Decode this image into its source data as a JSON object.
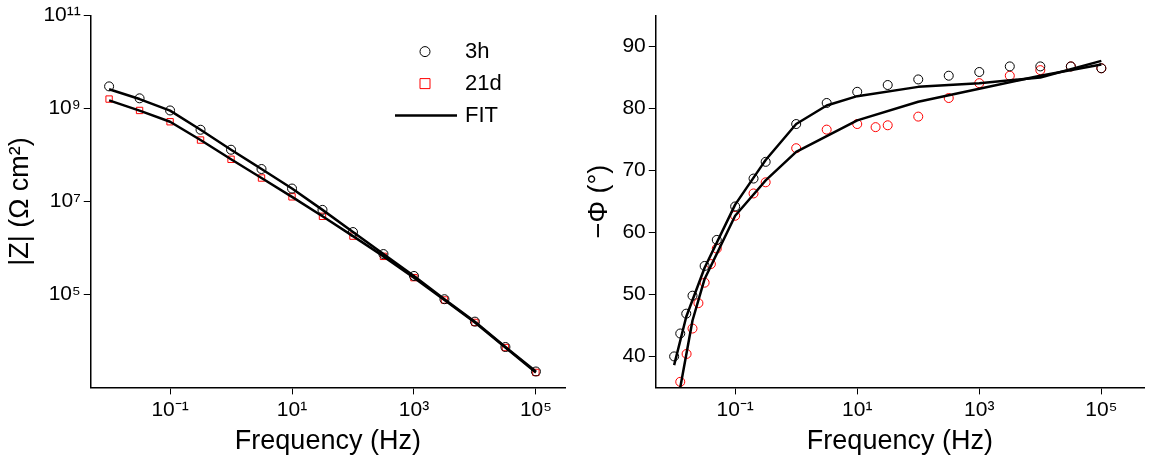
{
  "chart_data": [
    {
      "type": "scatter",
      "xlabel": "Frequency (Hz)",
      "ylabel": "|Z| (Ω cm²)",
      "log": "xy",
      "grid": false,
      "legend": "top right",
      "xlim": [
        0.005,
        300000
      ],
      "xticks": [
        {
          "value": 0.1,
          "label": "10⁻¹"
        },
        {
          "value": 10,
          "label": "10¹"
        },
        {
          "value": 1000,
          "label": "10³"
        },
        {
          "value": 100000,
          "label": "10⁵"
        }
      ],
      "ylim": [
        1000,
        100000000000
      ],
      "yticks": [
        {
          "value": 100000,
          "label": "10⁵"
        },
        {
          "value": 10000000,
          "label": "10⁷"
        },
        {
          "value": 1000000000,
          "label": "10⁹"
        },
        {
          "value": 100000000000,
          "label": "10¹¹"
        }
      ],
      "series": [
        {
          "name": "3h",
          "marker": "circle",
          "color": "#000000",
          "x": [
            0.01,
            0.0316,
            0.1,
            0.316,
            1,
            3.16,
            10,
            31.6,
            100,
            316,
            1000,
            3162,
            10000,
            31623,
            100000
          ],
          "values": [
            3000000000.0,
            1660000000.0,
            910000000.0,
            350000000.0,
            130000000.0,
            50000000.0,
            19000000.0,
            6600000.0,
            2200000.0,
            740000.0,
            250000.0,
            79000.0,
            26000.0,
            7400.0,
            2200.0
          ]
        },
        {
          "name": "21d",
          "marker": "square",
          "color": "#ff0000",
          "x": [
            0.01,
            0.0316,
            0.1,
            0.316,
            1,
            3.16,
            10,
            31.6,
            100,
            316,
            1000,
            3162,
            10000,
            31623,
            100000
          ],
          "values": [
            1600000000.0,
            910000000.0,
            520000000.0,
            210000000.0,
            81000000.0,
            32000000.0,
            12600000.0,
            4800000.0,
            1800000.0,
            660000.0,
            230000.0,
            76000.0,
            25000.0,
            7200.0,
            2100.0
          ]
        },
        {
          "name": "FIT",
          "type": "line",
          "color": "#000000",
          "x": [
            0.01,
            0.0316,
            0.1,
            0.316,
            1,
            3.16,
            10,
            31.6,
            100,
            316,
            1000,
            3162,
            10000,
            31623,
            100000
          ],
          "values": [
            2600000000.0,
            1600000000.0,
            900000000.0,
            350000000.0,
            130000000.0,
            50000000.0,
            19000000.0,
            6600000.0,
            2200000.0,
            740000.0,
            250000.0,
            79000.0,
            26000.0,
            7400.0,
            2200.0
          ]
        },
        {
          "type": "line",
          "color": "#000000",
          "x": [
            0.01,
            0.0316,
            0.1,
            0.316,
            1,
            3.16,
            10,
            31.6,
            100,
            316,
            1000,
            3162,
            10000,
            31623,
            100000
          ],
          "values": [
            1500000000.0,
            900000000.0,
            520000000.0,
            210000000.0,
            81000000.0,
            32000000.0,
            12600000.0,
            4800000.0,
            1800000.0,
            660000.0,
            230000.0,
            76000.0,
            25000.0,
            7200.0,
            2100.0
          ]
        }
      ]
    },
    {
      "type": "scatter",
      "xlabel": "Frequency (Hz)",
      "ylabel": "−Φ (°)",
      "log": "x",
      "grid": false,
      "xlim": [
        0.005,
        500000
      ],
      "xticks": [
        {
          "value": 0.1,
          "label": "10⁻¹"
        },
        {
          "value": 10,
          "label": "10¹"
        },
        {
          "value": 1000,
          "label": "10³"
        },
        {
          "value": 100000,
          "label": "10⁵"
        }
      ],
      "ylim": [
        35,
        95
      ],
      "yticks": [
        40,
        50,
        60,
        70,
        80,
        90
      ],
      "series": [
        {
          "marker": "circle",
          "color": "#000000",
          "x": [
            0.01,
            0.0126,
            0.0158,
            0.02,
            0.0316,
            0.05,
            0.1,
            0.2,
            0.316,
            1,
            3.16,
            10,
            31.6,
            100,
            316,
            1000,
            3162,
            10000,
            31623,
            100000
          ],
          "values": [
            40,
            43.7,
            46.9,
            49.8,
            54.6,
            58.8,
            64.2,
            68.7,
            71.4,
            77.5,
            80.9,
            82.7,
            83.8,
            84.7,
            85.3,
            85.9,
            86.8,
            86.8,
            86.8,
            86.5
          ]
        },
        {
          "marker": "circle",
          "color": "#ff0000",
          "x": [
            0.0126,
            0.016,
            0.02,
            0.025,
            0.0316,
            0.04,
            0.05,
            0.1,
            0.2,
            0.316,
            1,
            3.16,
            10,
            20,
            31.6,
            100,
            316,
            1000,
            3162,
            10000,
            31623,
            100000
          ],
          "values": [
            35.9,
            40.4,
            44.5,
            48.6,
            51.9,
            54.9,
            57.4,
            62.7,
            66.3,
            68.1,
            73.6,
            76.6,
            77.5,
            77.0,
            77.3,
            78.7,
            81.7,
            84.1,
            85.3,
            86.2,
            86.8,
            86.5
          ]
        },
        {
          "type": "line",
          "color": "#000000",
          "x": [
            0.01,
            0.0158,
            0.0316,
            0.1,
            0.316,
            1,
            3.16,
            10,
            100,
            1000,
            10000,
            100000
          ],
          "values": [
            38.6,
            46.4,
            54.3,
            64.5,
            71.7,
            77.5,
            80.5,
            82,
            83.5,
            84.1,
            85,
            87.7
          ]
        },
        {
          "type": "line",
          "color": "#000000",
          "x": [
            0.0126,
            0.02,
            0.0316,
            0.1,
            0.316,
            1,
            10,
            100,
            1000,
            10000,
            100000
          ],
          "values": [
            35,
            45.8,
            52.5,
            62.7,
            68.4,
            73,
            78.1,
            81.1,
            83.2,
            85.3,
            87.1
          ]
        }
      ]
    }
  ]
}
